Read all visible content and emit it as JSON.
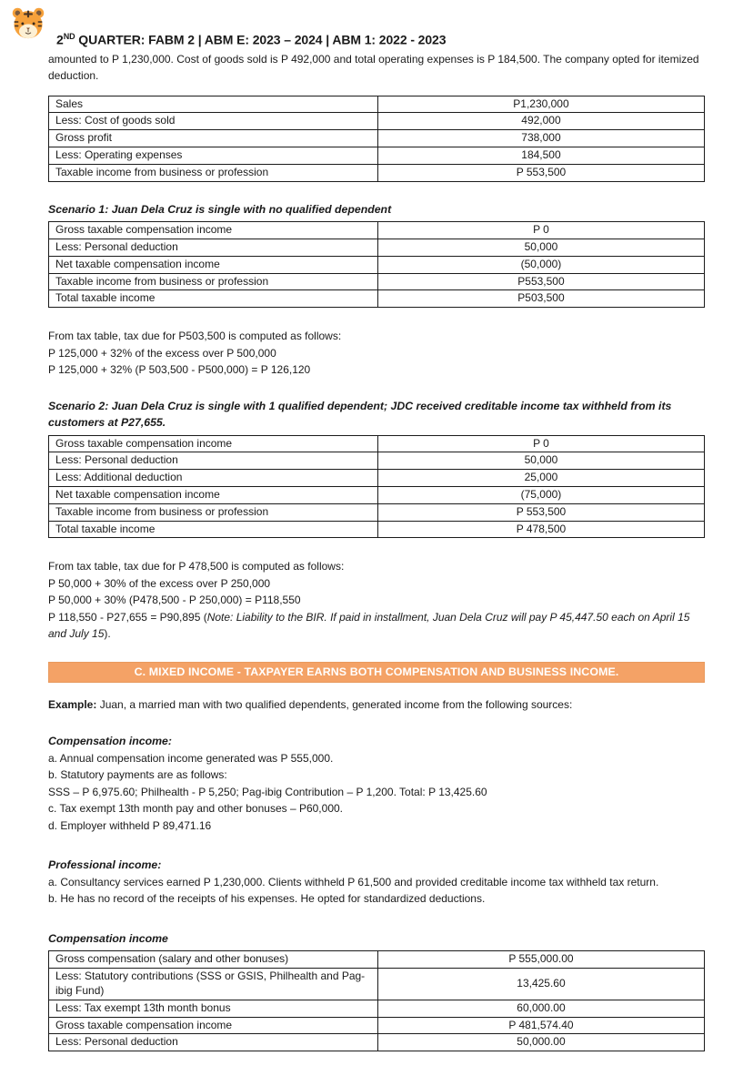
{
  "header": {
    "logo": "tiger-face-emoji",
    "title_num": "2",
    "title_ord": "ND",
    "title_rest": " QUARTER: FABM 2 | ABM E: 2023 – 2024 | ABM 1: 2022 - 2023"
  },
  "intro": "amounted to P 1,230,000. Cost of goods sold is P 492,000 and total operating expenses is P 184,500. The company opted for itemized deduction.",
  "tables": {
    "business_income": {
      "rows": [
        [
          "Sales",
          "P1,230,000"
        ],
        [
          "Less: Cost of goods sold",
          "492,000"
        ],
        [
          "Gross profit",
          "738,000"
        ],
        [
          "Less: Operating expenses",
          "184,500"
        ],
        [
          "Taxable income from business or profession",
          "P 553,500"
        ]
      ]
    },
    "scenario1": {
      "rows": [
        [
          "Gross taxable compensation income",
          "P 0"
        ],
        [
          "Less: Personal deduction",
          "50,000"
        ],
        [
          "Net taxable compensation income",
          "(50,000)"
        ],
        [
          "Taxable income from business or profession",
          "P553,500"
        ],
        [
          "Total taxable income",
          "P503,500"
        ]
      ]
    },
    "scenario2": {
      "rows": [
        [
          "Gross taxable compensation income",
          "P 0"
        ],
        [
          "Less: Personal deduction",
          "50,000"
        ],
        [
          "Less: Additional deduction",
          "25,000"
        ],
        [
          "Net taxable compensation income",
          "(75,000)"
        ],
        [
          "Taxable income from business or profession",
          "P 553,500"
        ],
        [
          "Total taxable income",
          "P 478,500"
        ]
      ]
    },
    "compensation": {
      "rows": [
        [
          "Gross compensation (salary and other bonuses)",
          "P 555,000.00"
        ],
        [
          "Less: Statutory contributions (SSS or GSIS, Philhealth and Pag-ibig Fund)",
          "13,425.60"
        ],
        [
          "Less: Tax exempt 13th month bonus",
          "60,000.00"
        ],
        [
          "Gross taxable compensation income",
          "P 481,574.40"
        ],
        [
          "Less: Personal deduction",
          "50,000.00"
        ]
      ]
    }
  },
  "scenario1_heading": "Scenario 1: Juan Dela Cruz is single with no qualified dependent",
  "tax_calc1": {
    "line1": "From tax table, tax due for P503,500 is computed as follows:",
    "line2": "P 125,000 + 32% of the excess over P 500,000",
    "line3": "P 125,000 + 32% (P 503,500 - P500,000) = P 126,120"
  },
  "scenario2_heading": "Scenario 2: Juan Dela Cruz is single with 1 qualified dependent; JDC received creditable income tax withheld from its customers at P27,655.",
  "tax_calc2": {
    "line1": "From tax table, tax due for P 478,500 is computed as follows:",
    "line2": "P 50,000 + 30% of the excess over P 250,000",
    "line3": "P 50,000 + 30% (P478,500 - P 250,000) = P118,550",
    "line4_start": "P 118,550 - P27,655 = P90,895 (",
    "line4_note": "Note: Liability to the BIR. If paid in installment, Juan Dela Cruz will pay P 45,447.50 each on April 15 and July 15",
    "line4_end": ")."
  },
  "banner": {
    "text": "C. MIXED INCOME - TAXPAYER EARNS BOTH COMPENSATION AND BUSINESS INCOME.",
    "bg_color": "#f4a266",
    "text_color": "#ffffff"
  },
  "example": {
    "label": "Example:",
    "text": " Juan, a married man with two qualified dependents, generated income from the following sources:"
  },
  "compensation_income": {
    "heading": "Compensation income:",
    "items": [
      "a. Annual compensation income generated was P 555,000.",
      "b. Statutory payments are as follows:",
      "SSS – P 6,975.60; Philhealth - P 5,250; Pag-ibig Contribution – P 1,200. Total: P 13,425.60",
      "c. Tax exempt 13th month pay and other bonuses – P60,000.",
      "d. Employer withheld P 89,471.16"
    ]
  },
  "professional_income": {
    "heading": "Professional income:",
    "items": [
      "a. Consultancy services earned P 1,230,000. Clients withheld P 61,500 and provided creditable income tax withheld tax return.",
      "b. He has no record of the receipts of his expenses. He opted for standardized deductions."
    ]
  },
  "comp_table_heading": "Compensation income"
}
